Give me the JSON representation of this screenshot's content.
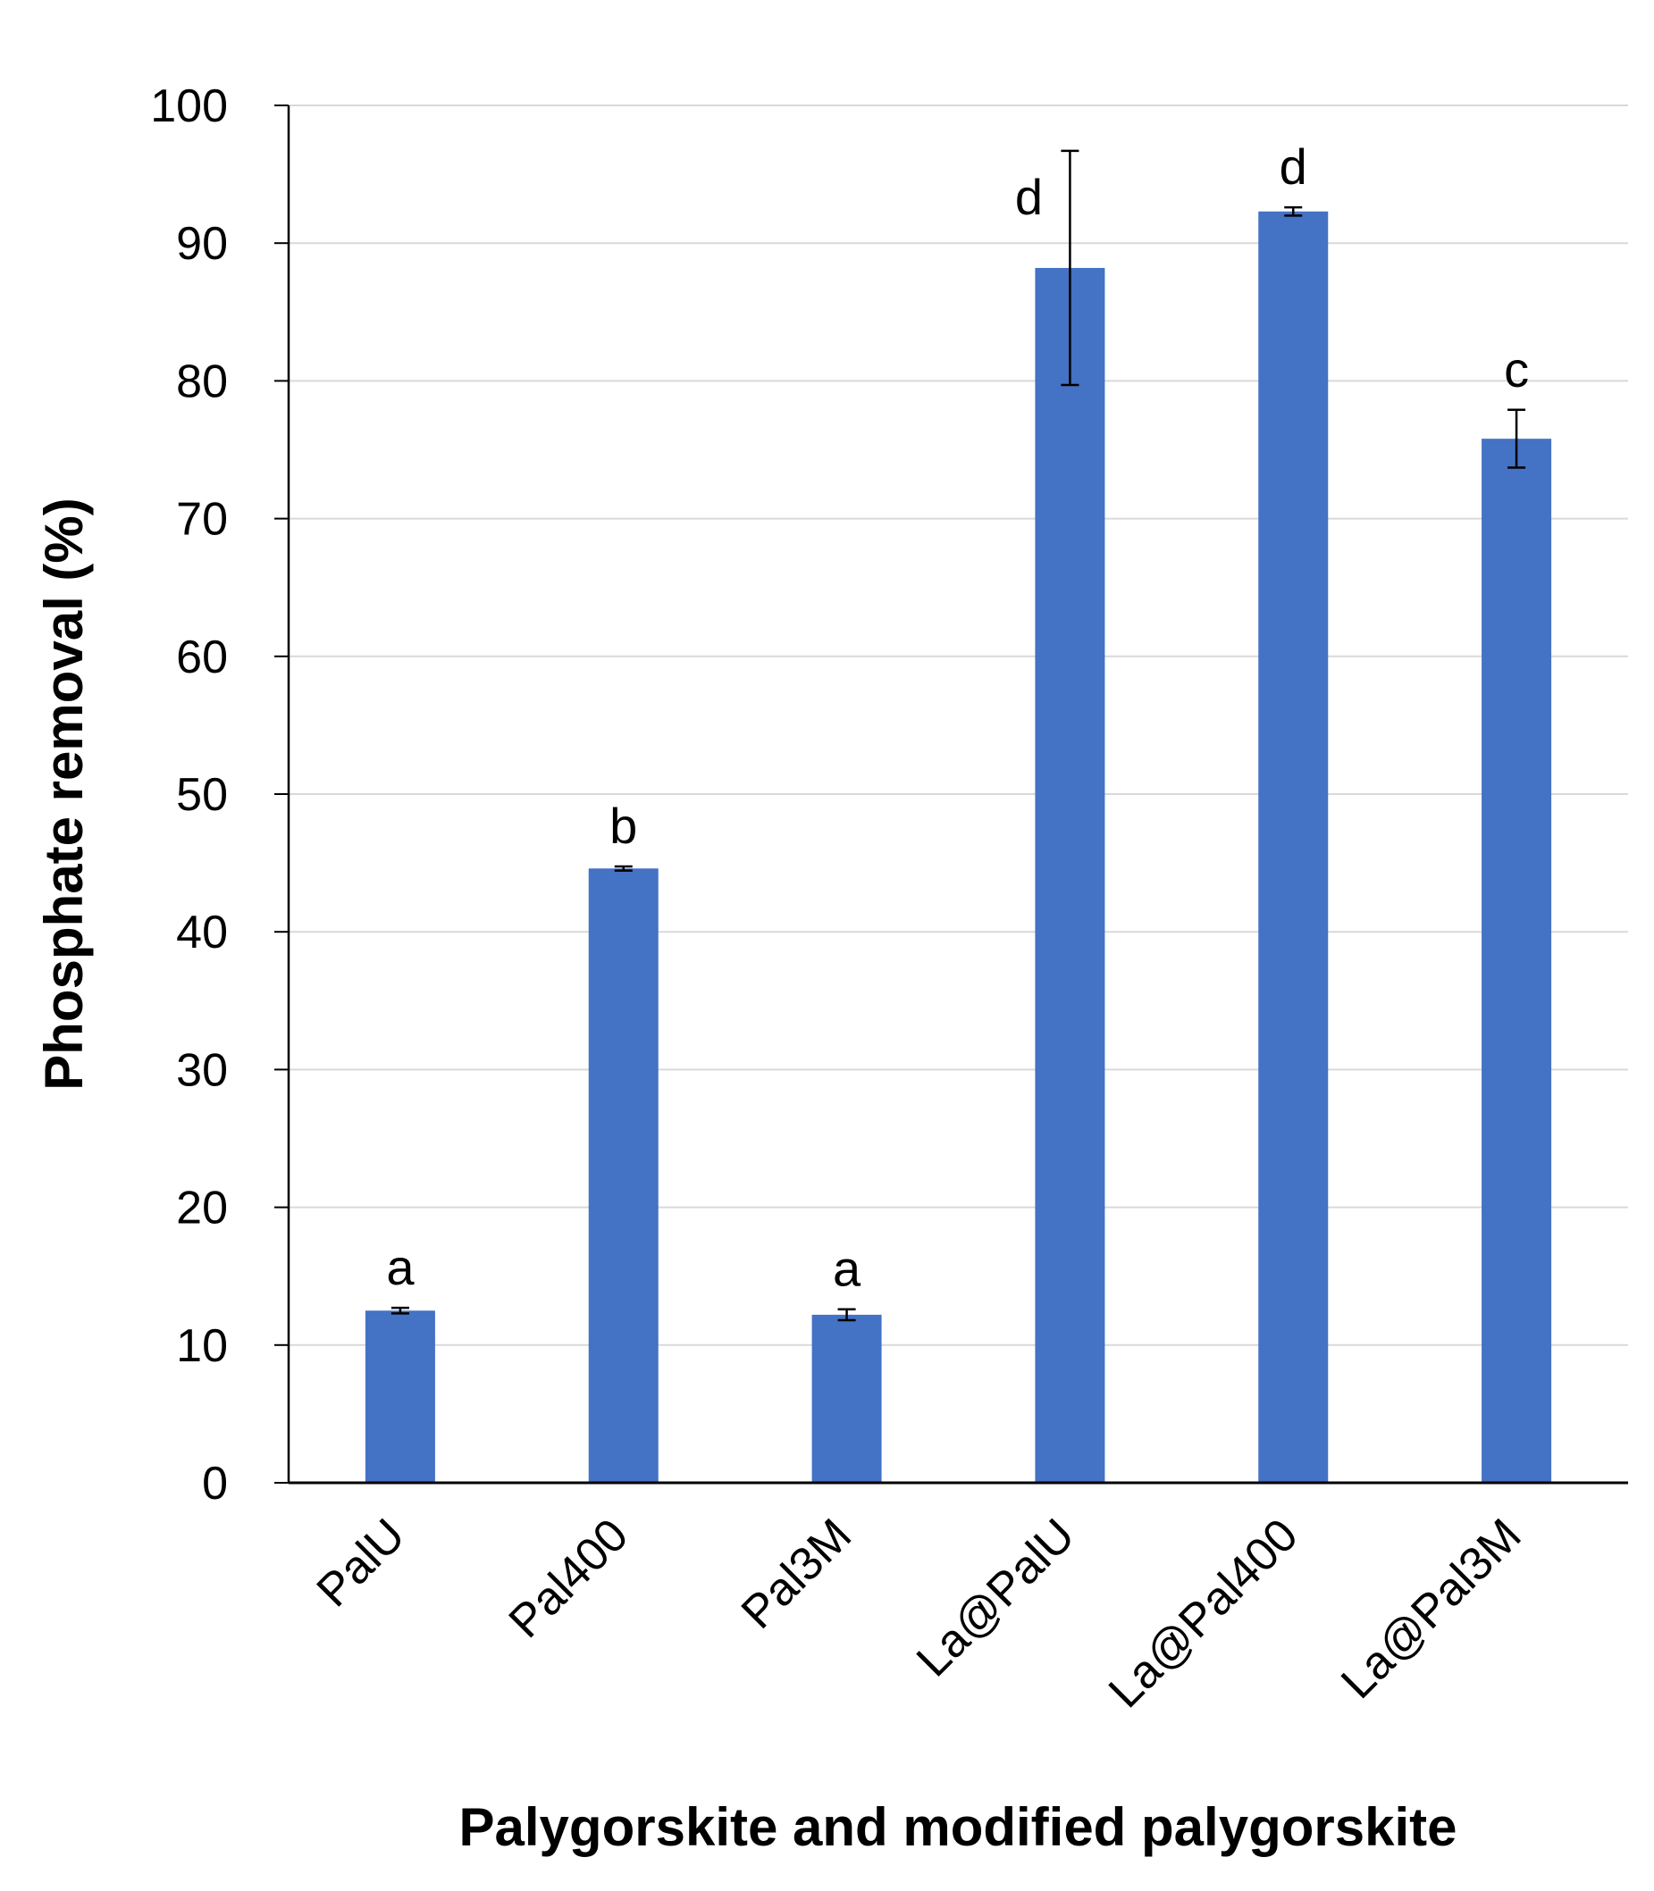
{
  "chart_data": {
    "type": "bar",
    "title": "",
    "xlabel": "Palygorskite and modified palygorskite",
    "ylabel": "Phosphate removal (%)",
    "ylim": [
      0,
      100
    ],
    "yticks": [
      0,
      10,
      20,
      30,
      40,
      50,
      60,
      70,
      80,
      90,
      100
    ],
    "ytick_labels": [
      "0",
      "10",
      "20",
      "30",
      "40",
      "50",
      "60",
      "70",
      "80",
      "90",
      "100"
    ],
    "grid": true,
    "legend": "none",
    "categories": [
      "PalU",
      "Pal400",
      "Pal3M",
      "La@PalU",
      "La@Pal400",
      "La@Pal3M"
    ],
    "values": [
      12.5,
      44.6,
      12.2,
      88.2,
      92.3,
      75.8
    ],
    "error": [
      0.2,
      0.15,
      0.4,
      8.5,
      0.3,
      2.1
    ],
    "significance_labels": [
      "a",
      "b",
      "a",
      "d",
      "d",
      "c"
    ],
    "colors": {
      "bar": "#4472C4",
      "grid": "#D9D9D9",
      "axis": "#000000"
    }
  }
}
